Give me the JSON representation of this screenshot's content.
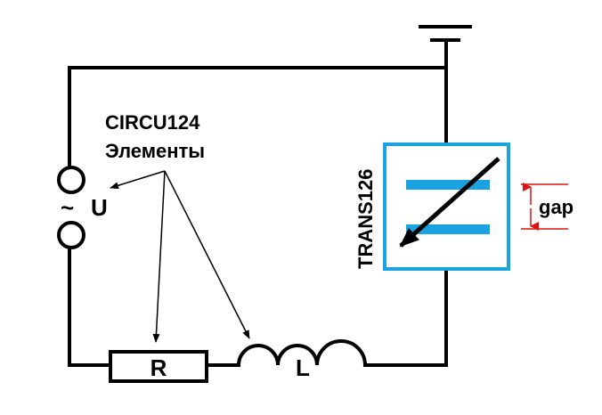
{
  "annotation": {
    "line1": "CIRCU124",
    "line2": "Элементы"
  },
  "source": {
    "symbol": "~",
    "label": "U"
  },
  "resistor": {
    "label": "R"
  },
  "inductor": {
    "label": "L"
  },
  "transducer": {
    "label": "TRANS126",
    "gap_label": "gap"
  },
  "colors": {
    "wire": "#000000",
    "transducer_frame": "#1aa3e0",
    "capacitor_plate": "#1aa3e0",
    "gap_marker": "#e01010"
  }
}
